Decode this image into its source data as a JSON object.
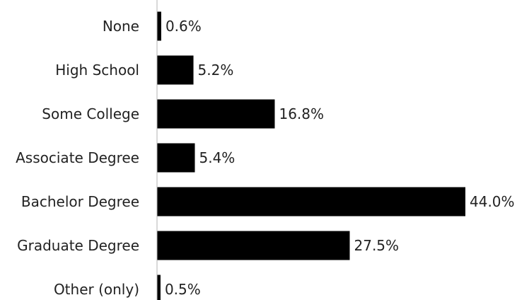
{
  "chart_data": {
    "type": "bar",
    "orientation": "horizontal",
    "categories": [
      "None",
      "High School",
      "Some College",
      "Associate Degree",
      "Bachelor Degree",
      "Graduate Degree",
      "Other (only)"
    ],
    "values": [
      0.6,
      5.2,
      16.8,
      5.4,
      44.0,
      27.5,
      0.5
    ],
    "data_labels": [
      "0.6%",
      "5.2%",
      "16.8%",
      "5.4%",
      "44.0%",
      "27.5%",
      "0.5%"
    ],
    "unit": "%",
    "xlim": [
      0,
      44
    ],
    "grid": false,
    "legend": "none",
    "bar_color": "#000000",
    "axis_color": "#b3b3b3",
    "text_color": "#222222"
  }
}
